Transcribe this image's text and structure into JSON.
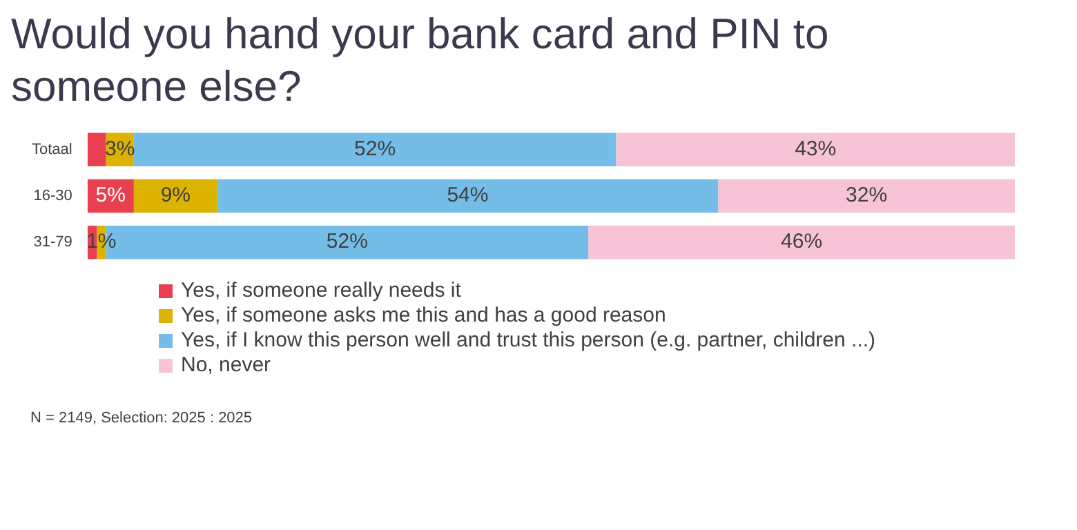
{
  "chart_data": {
    "type": "bar",
    "orientation": "horizontal",
    "stacked": true,
    "title": "Would you hand your bank card and PIN to someone else?",
    "categories": [
      "Totaal",
      "16-30",
      "31-79"
    ],
    "series": [
      {
        "name": "Yes, if someone really needs it",
        "color": "#e8404f",
        "values": [
          2,
          5,
          1
        ],
        "value_labels": [
          null,
          "5%",
          null
        ]
      },
      {
        "name": "Yes, if someone asks me this and has a good reason",
        "color": "#dcb300",
        "values": [
          3,
          9,
          1
        ],
        "value_labels": [
          "3%",
          "9%",
          "1%"
        ]
      },
      {
        "name": "Yes, if I know this person well and trust this person (e.g. partner, children ...)",
        "color": "#74bde9",
        "values": [
          52,
          54,
          52
        ],
        "value_labels": [
          "52%",
          "54%",
          "52%"
        ]
      },
      {
        "name": "No, never",
        "color": "#f7c3d7",
        "values": [
          43,
          32,
          46
        ],
        "value_labels": [
          "43%",
          "32%",
          "46%"
        ]
      }
    ],
    "xlim": [
      0,
      100
    ],
    "tick_labels": "y",
    "legend": "bottom left",
    "annotations": [
      "N = 2149, Selection: 2025 : 2025"
    ]
  }
}
